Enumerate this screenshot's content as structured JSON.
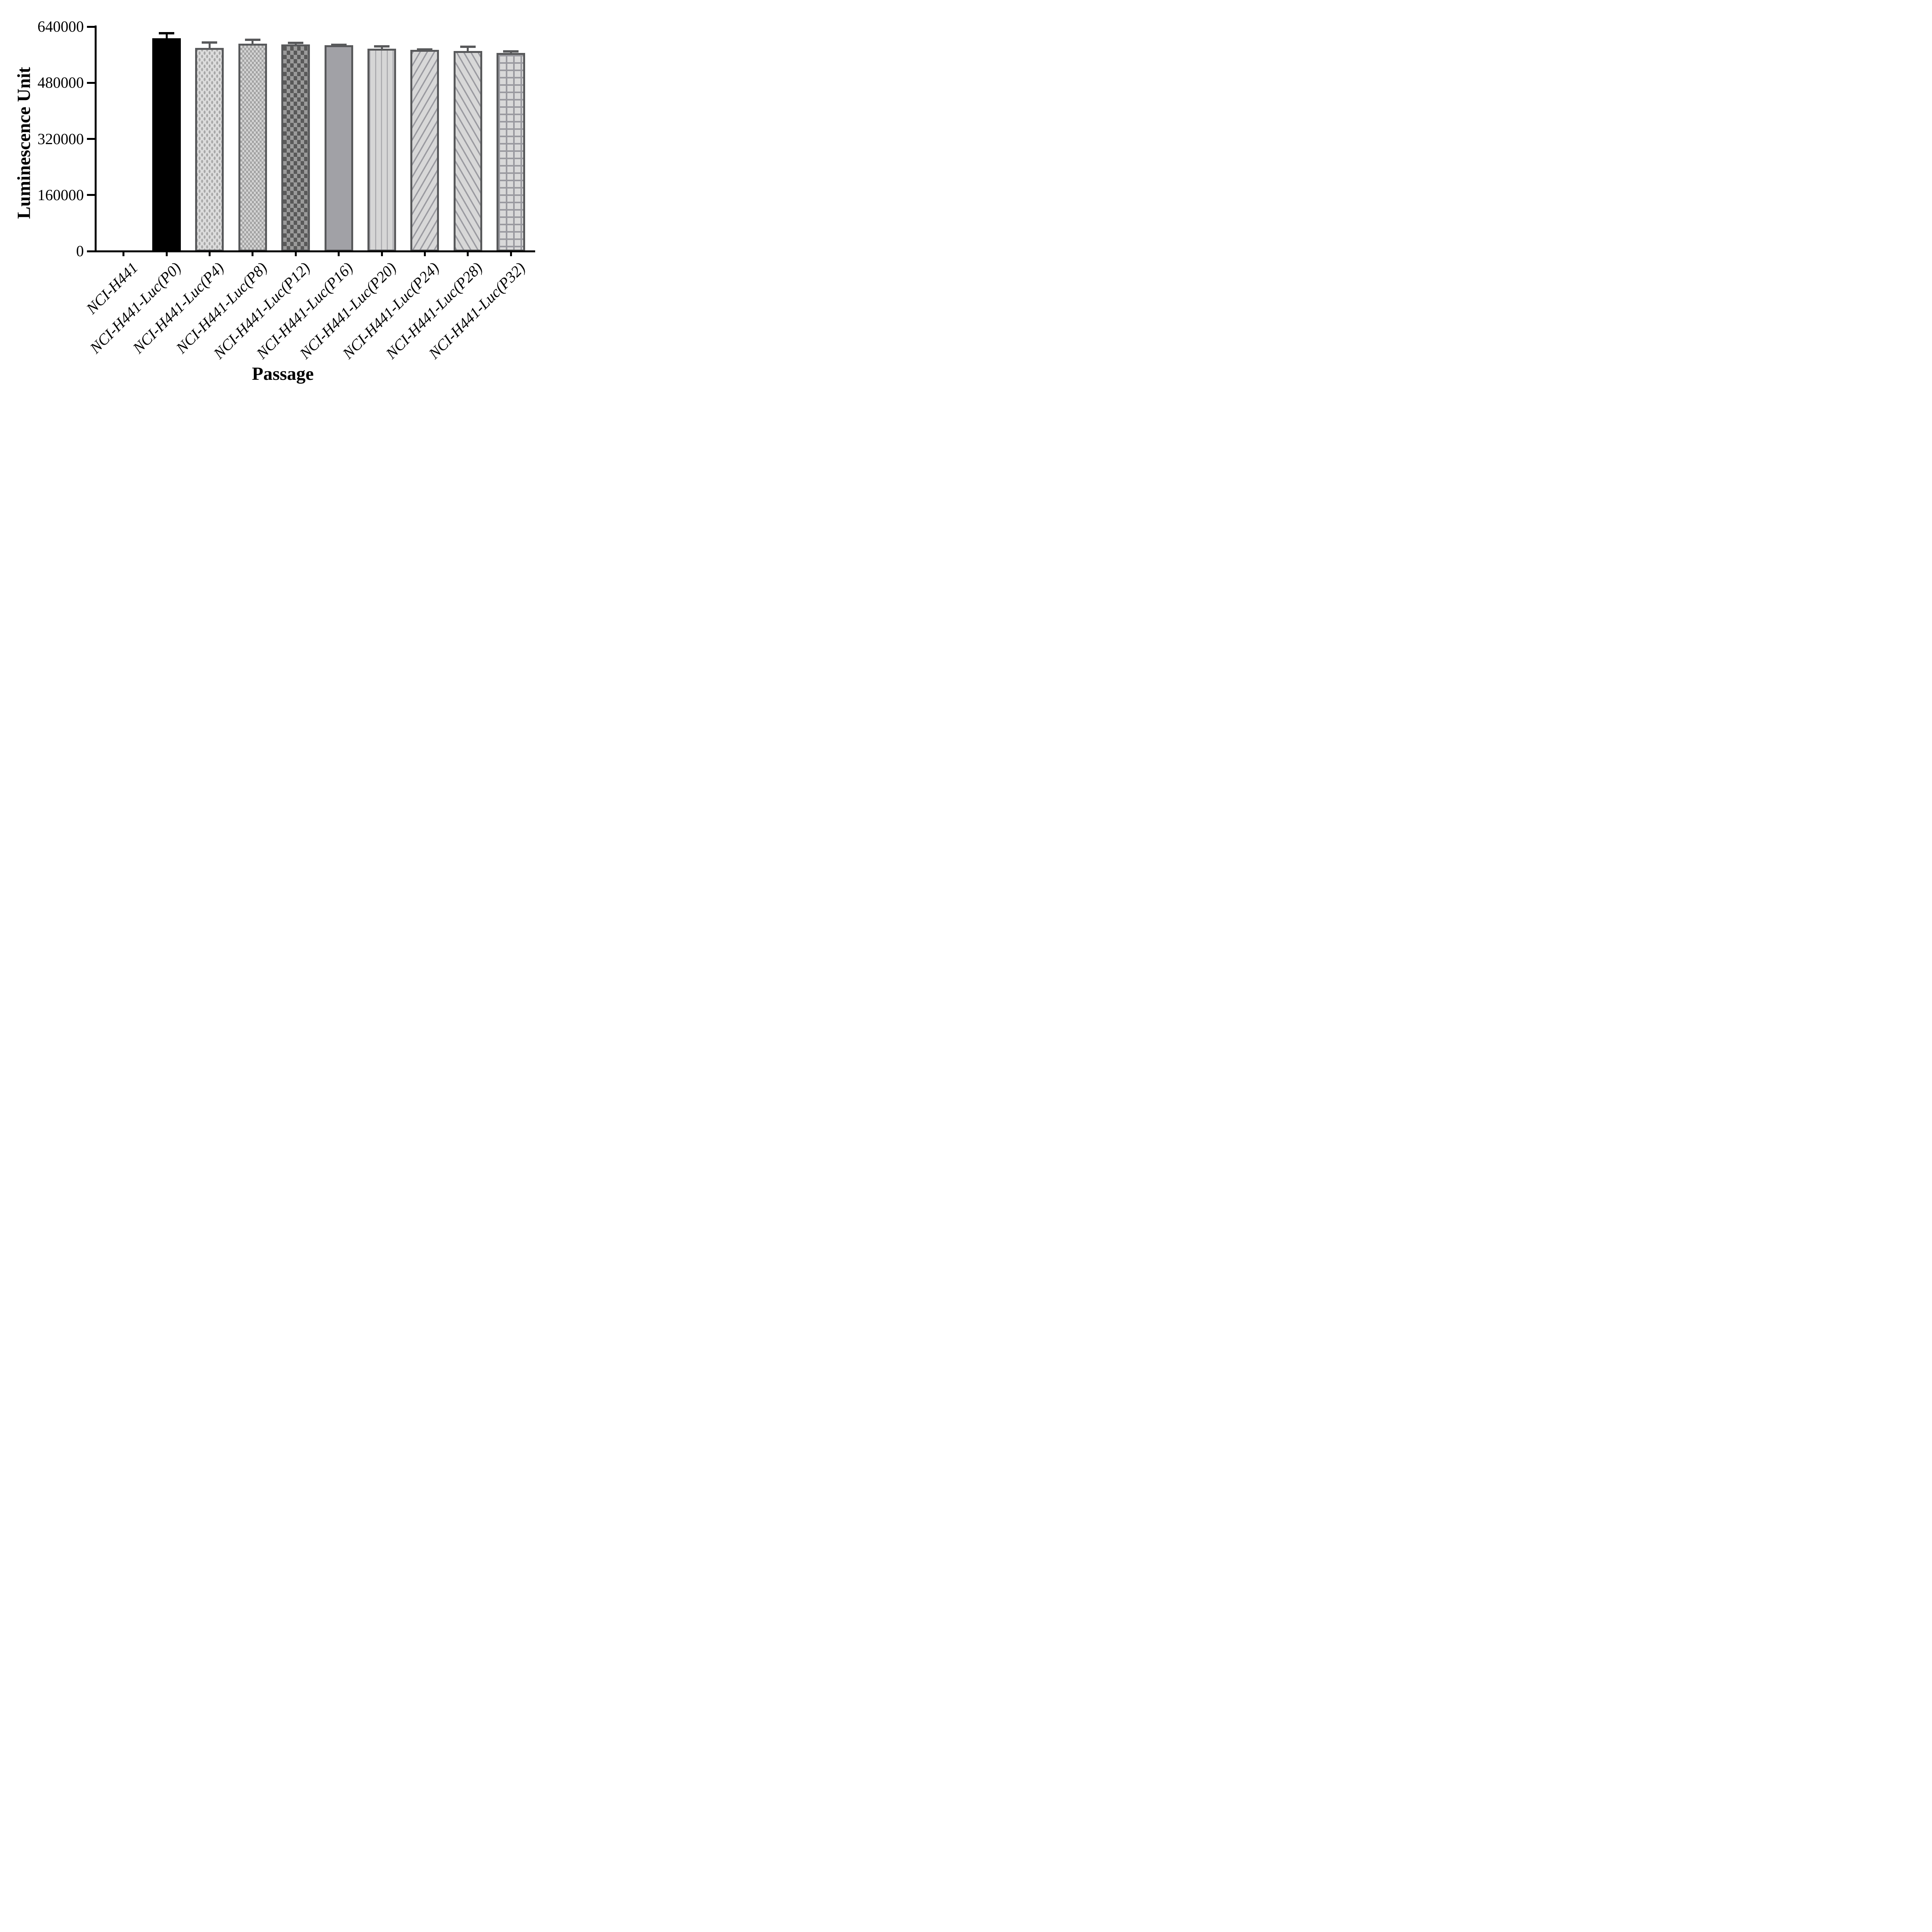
{
  "chart_data": {
    "type": "bar",
    "title": "",
    "xlabel": "Passage",
    "ylabel": "Luminescence Unit",
    "ylim": [
      0,
      640000
    ],
    "yticks": [
      0,
      160000,
      320000,
      480000,
      640000
    ],
    "ytick_labels": [
      "0",
      "160000",
      "320000",
      "480000",
      "640000"
    ],
    "grid": false,
    "legend_position": "none",
    "x_label_rotation_deg": -45,
    "error_bars": "upper only, cap style",
    "categories": [
      "NCI-H441",
      "NCI-H441-Luc(P0)",
      "NCI-H441-Luc(P4)",
      "NCI-H441-Luc(P8)",
      "NCI-H441-Luc(P12)",
      "NCI-H441-Luc(P16)",
      "NCI-H441-Luc(P20)",
      "NCI-H441-Luc(P24)",
      "NCI-H441-Luc(P28)",
      "NCI-H441-Luc(P32)"
    ],
    "values": [
      0,
      607000,
      579000,
      592000,
      589000,
      587000,
      577000,
      574000,
      571000,
      565000
    ],
    "errors": [
      0,
      18000,
      19000,
      14000,
      8000,
      5000,
      10000,
      4000,
      15000,
      8000
    ],
    "bar_patterns": [
      "none",
      "solid-black",
      "dots",
      "checker-fine",
      "checker-dark",
      "solid-gray",
      "vertical-stripes",
      "diagonal-up",
      "diagonal-down",
      "grid"
    ],
    "colors": {
      "bar_border": "#58595b",
      "first_bar": "#000000",
      "pattern_light": "#d9d9d9",
      "pattern_mid": "#a1a1a6",
      "pattern_dark": "#595959",
      "axis": "#000000",
      "text": "#000000"
    }
  }
}
